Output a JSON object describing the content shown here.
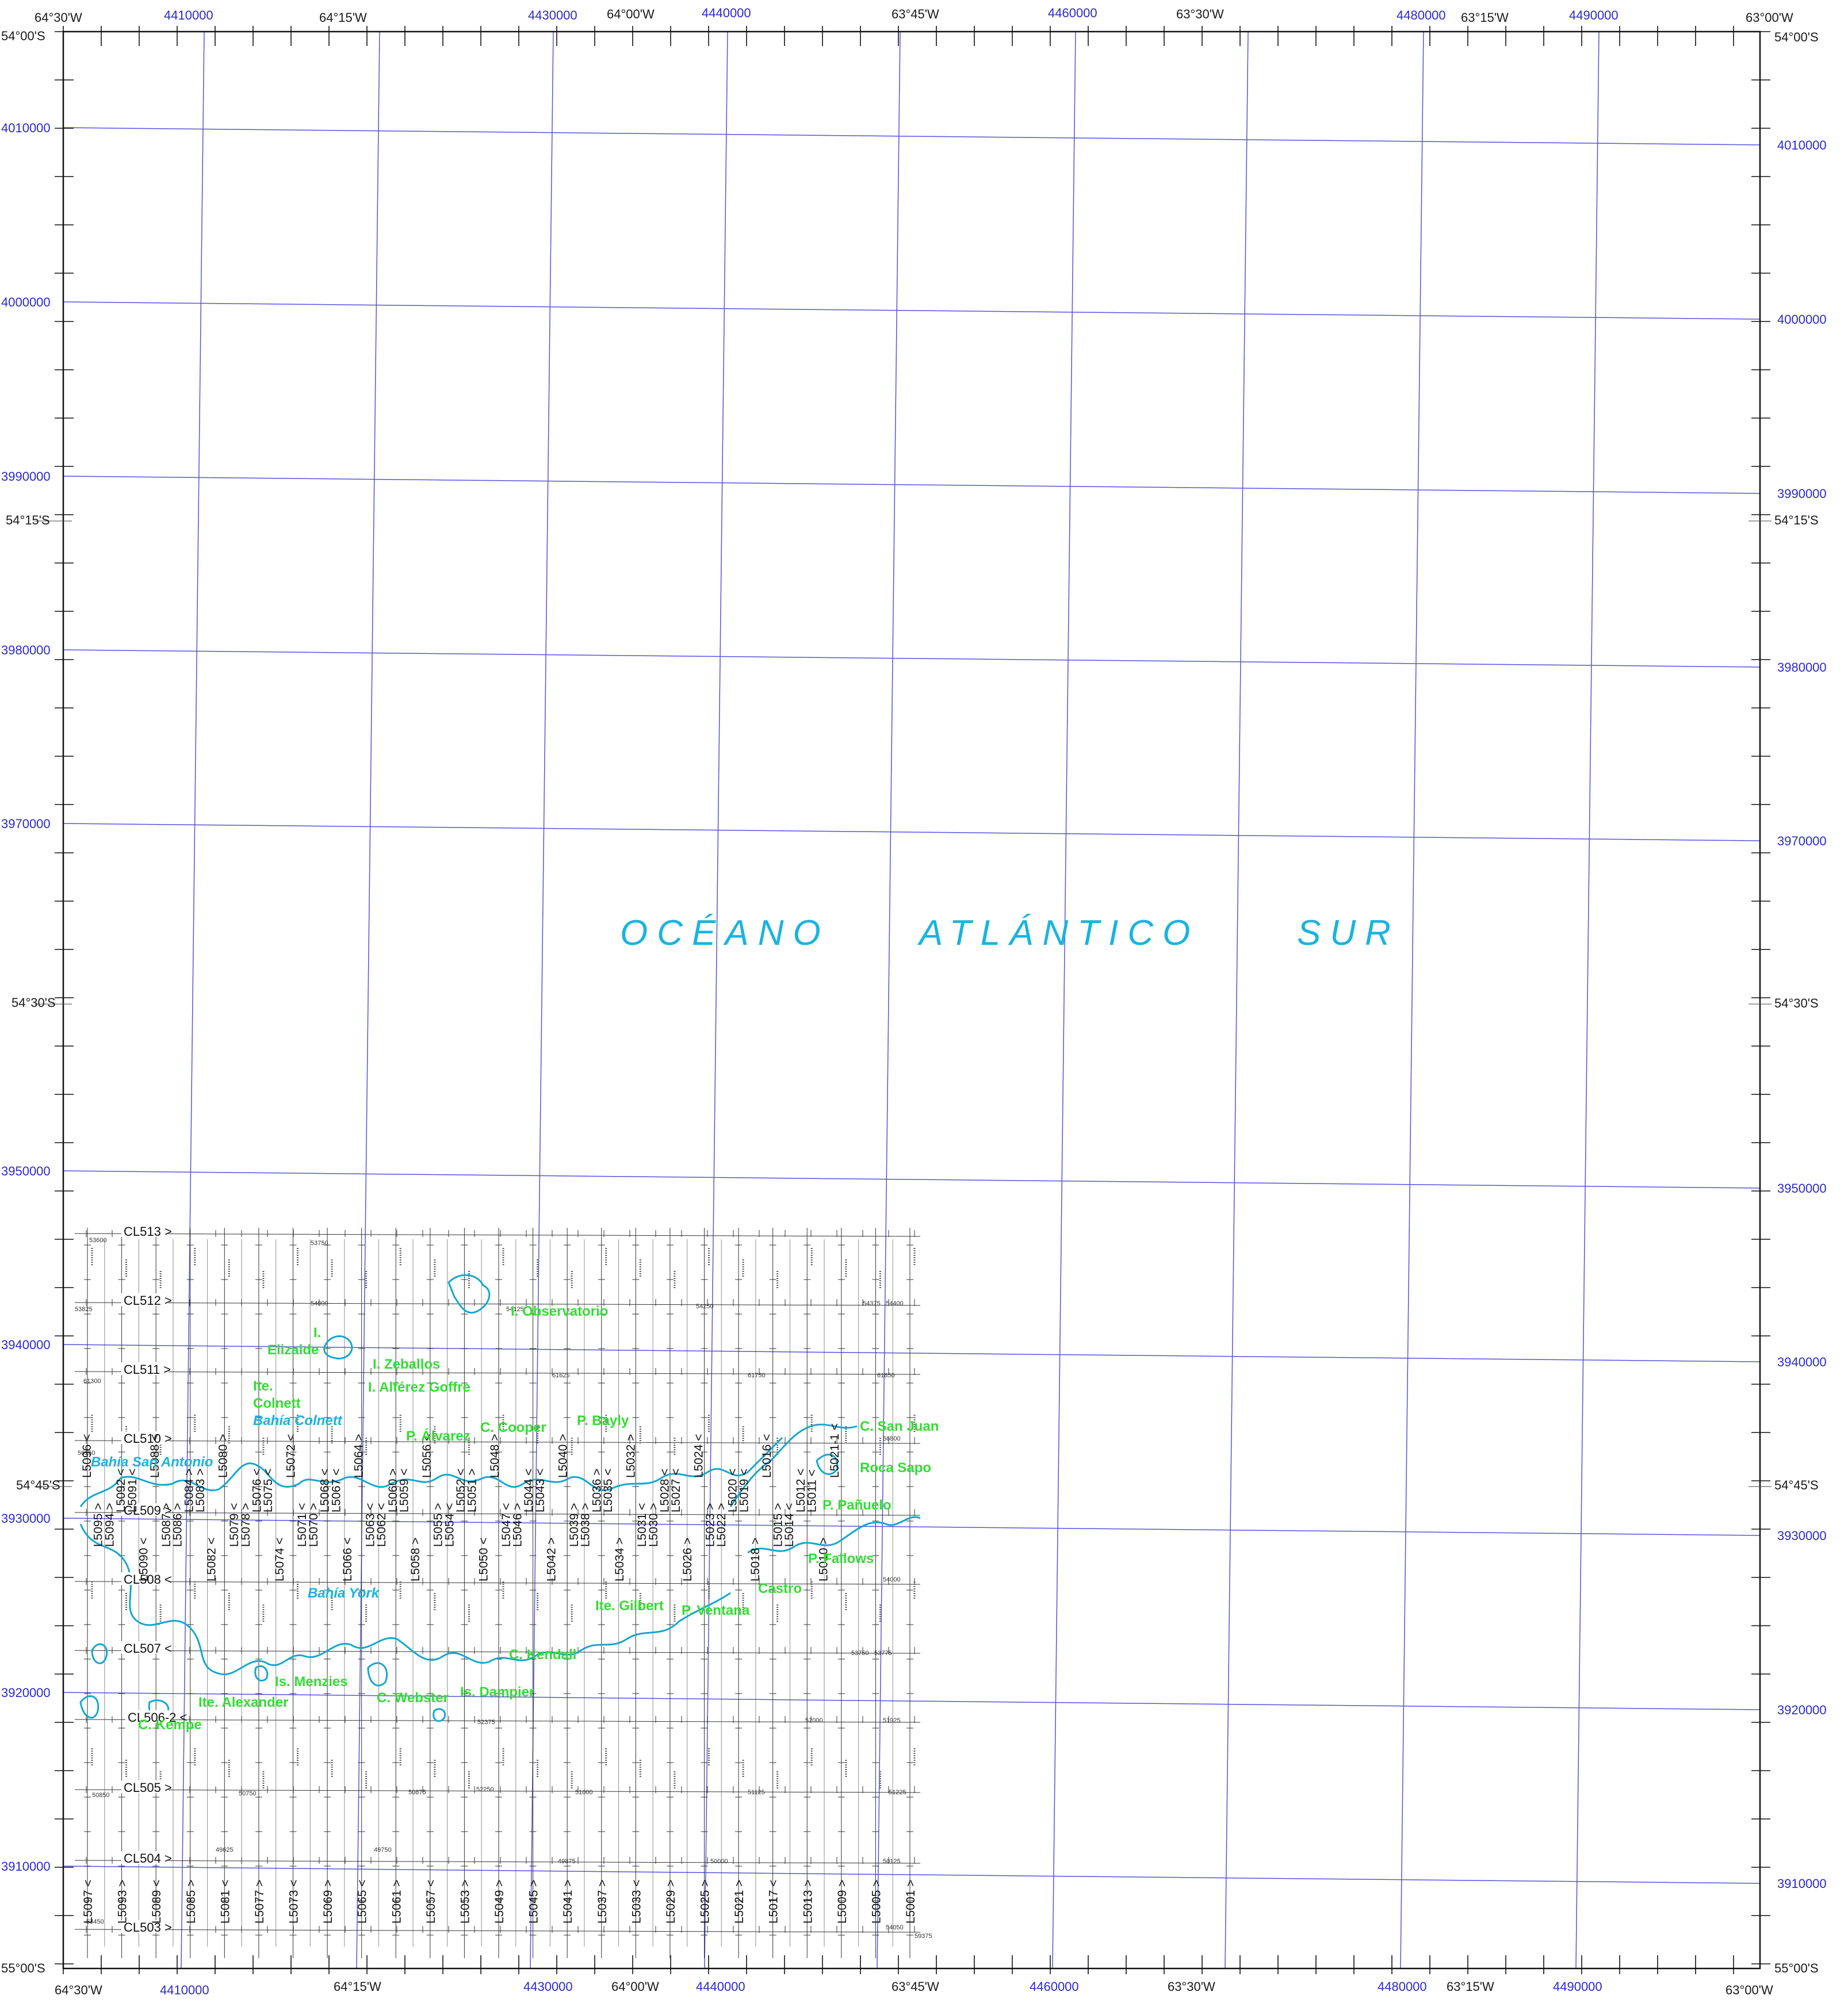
{
  "map": {
    "ocean_label": [
      "OCÉANO",
      "ATLÁNTICO",
      "SUR"
    ],
    "geo_top": [
      "64°30'W",
      "64°15'W",
      "64°00'W",
      "63°45'W",
      "63°30'W",
      "63°15'W",
      "63°00'W"
    ],
    "geo_bottom": [
      "64°30'W",
      "64°15'W",
      "64°00'W",
      "63°45'W",
      "63°30'W",
      "63°15'W",
      "63°00'W"
    ],
    "geo_left": [
      "54°00'S",
      "54°15'S",
      "54°30'S",
      "54°45'S",
      "55°00'S"
    ],
    "geo_right": [
      "54°00'S",
      "54°15'S",
      "54°30'S",
      "54°45'S",
      "55°00'S"
    ],
    "utm_x": [
      "4410000",
      "4430000",
      "4440000",
      "4460000",
      "4480000",
      "4490000"
    ],
    "utm_y_left": [
      "4010000",
      "4000000",
      "3990000",
      "3980000",
      "3970000",
      "3950000",
      "3940000",
      "3930000",
      "3920000",
      "3910000"
    ],
    "utm_y_right": [
      "4010000",
      "4000000",
      "3990000",
      "3980000",
      "3970000",
      "3950000",
      "3940000",
      "3930000",
      "3920000",
      "3910000"
    ],
    "cl_lines": [
      "CL513 >",
      "CL512 >",
      "CL511 >",
      "CL510 >",
      "CL509 >",
      "CL508 <",
      "CL507 <",
      "CL506-2 <",
      "CL505 >",
      "CL504 >",
      "CL503 >"
    ],
    "l_lines_bottom": [
      "L5097 <",
      "L5093 >",
      "L5089 <",
      "L5085 >",
      "L5081 <",
      "L5077 >",
      "L5073 <",
      "L5069 >",
      "L5065 <",
      "L5061 >",
      "L5057 <",
      "L5053 >",
      "L5049 >",
      "L5045 >",
      "L5041 >",
      "L5037 >",
      "L5033 <",
      "L5029 >",
      "L5025 >",
      "L5021 >",
      "L5017 <",
      "L5013 >",
      "L5009 >",
      "L5005 >",
      "L5001 >"
    ],
    "l_lines_mid": [
      "L5096 <",
      "L5095 >",
      "L5094 >",
      "L5092 <",
      "L5091 <",
      "L5090 <",
      "L5088 <",
      "L5087 >",
      "L5086 >",
      "L5084 >",
      "L5083 >",
      "L5082 <",
      "L5080 >",
      "L5079 <",
      "L5078 >",
      "L5076 <",
      "L5075 <",
      "L5074 <",
      "L5072 <",
      "L5071 <",
      "L5070 >",
      "L5068 <",
      "L5067 <",
      "L5066 <",
      "L5064 >",
      "L5063 <",
      "L5062 <",
      "L5060 >",
      "L5059 <",
      "L5058 >",
      "L5056 <",
      "L5055 >",
      "L5054 <",
      "L5052 <",
      "L5051 >",
      "L5050 <",
      "L5048 >",
      "L5047 <",
      "L5046 >",
      "L5044 <",
      "L5043 <",
      "L5042 >",
      "L5040 >",
      "L5039 >",
      "L5038 >",
      "L5036 >",
      "L5035 <",
      "L5034 >",
      "L5032 >",
      "L5031 <",
      "L5030 >",
      "L5028 <",
      "L5027 <",
      "L5026 >",
      "L5024 <",
      "L5023 >",
      "L5022 >",
      "L5020 <",
      "L5019 <",
      "L5018 >",
      "L5016 <",
      "L5015 >",
      "L5014 <",
      "L5012 <",
      "L5011 <",
      "L5010 >",
      "L5021-1 <"
    ],
    "places_green": [
      "I. Elizalde",
      "I. Zeballos",
      "I. Alférez Goffre",
      "I. Observatorio",
      "Ite. Colnett",
      "P. Álvarez",
      "C. Cooper",
      "P. Bayly",
      "C. San Juan",
      "Roca Sapo",
      "P. Pañuelo",
      "P. Fallows",
      "Castro",
      "Ite. Gilbert",
      "P. Ventana",
      "C. Kendall",
      "Is. Menzies",
      "Ite. Alexander",
      "C. Kempe",
      "C. Webster",
      "Is. Dampier"
    ],
    "places_cyan": [
      "Bahía San Antonio",
      "Bahía Colnett",
      "Bahía York"
    ],
    "sample_values": [
      "53600",
      "53825",
      "56150",
      "61300",
      "53750",
      "54000",
      "54125",
      "54250",
      "61625",
      "61750",
      "61850",
      "54375",
      "54400",
      "56800",
      "54000",
      "53750",
      "53775",
      "52375",
      "52250",
      "52000",
      "51925",
      "51125",
      "51225",
      "51000",
      "50875",
      "50750",
      "50850",
      "49625",
      "49750",
      "49875",
      "50000",
      "50125",
      "53450",
      "54050",
      "59375"
    ]
  }
}
